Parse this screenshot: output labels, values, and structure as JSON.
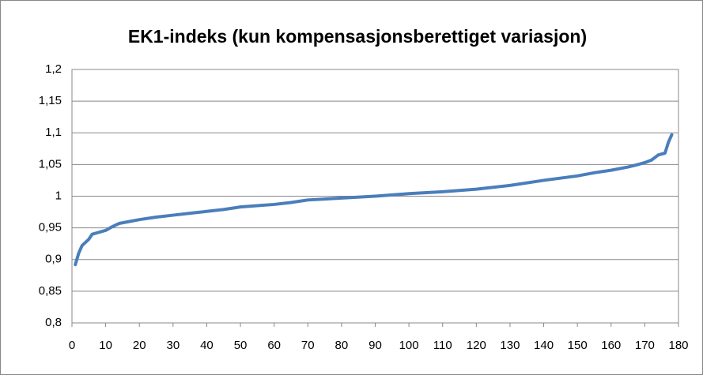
{
  "chart_data": {
    "type": "line",
    "title": "EK1-indeks (kun kompensasjonsberettiget variasjon)",
    "x": [
      1,
      2,
      3,
      4,
      5,
      6,
      8,
      10,
      12,
      14,
      17,
      20,
      25,
      30,
      35,
      40,
      45,
      50,
      55,
      60,
      65,
      70,
      80,
      90,
      100,
      110,
      120,
      130,
      140,
      150,
      155,
      160,
      165,
      168,
      170,
      172,
      174,
      176,
      177,
      178
    ],
    "values": [
      0.892,
      0.91,
      0.922,
      0.927,
      0.932,
      0.94,
      0.943,
      0.946,
      0.952,
      0.957,
      0.96,
      0.963,
      0.967,
      0.97,
      0.973,
      0.976,
      0.979,
      0.983,
      0.985,
      0.987,
      0.99,
      0.994,
      0.997,
      1.0,
      1.004,
      1.007,
      1.011,
      1.017,
      1.025,
      1.032,
      1.037,
      1.041,
      1.046,
      1.05,
      1.053,
      1.057,
      1.065,
      1.068,
      1.085,
      1.097
    ],
    "color": "#4a7ebb",
    "xlim": [
      0,
      180
    ],
    "xticks": [
      0,
      10,
      20,
      30,
      40,
      50,
      60,
      70,
      80,
      90,
      100,
      110,
      120,
      130,
      140,
      150,
      160,
      170,
      180
    ],
    "ylim": [
      0.8,
      1.2
    ],
    "yticks": [
      {
        "value": 0.8,
        "label": "0,8"
      },
      {
        "value": 0.85,
        "label": "0,85"
      },
      {
        "value": 0.9,
        "label": "0,9"
      },
      {
        "value": 0.95,
        "label": "0,95"
      },
      {
        "value": 1,
        "label": "1"
      },
      {
        "value": 1.05,
        "label": "1,05"
      },
      {
        "value": 1.1,
        "label": "1,1"
      },
      {
        "value": 1.15,
        "label": "1,15"
      },
      {
        "value": 1.2,
        "label": "1,2"
      }
    ],
    "grid": true
  }
}
